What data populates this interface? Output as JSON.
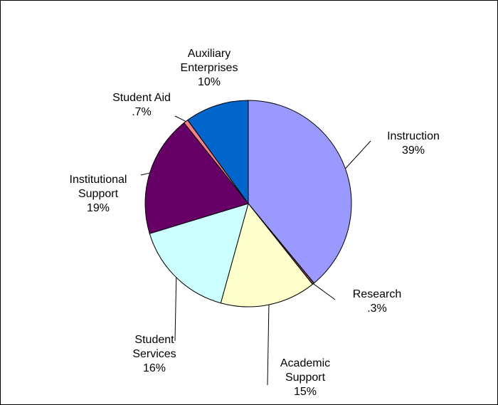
{
  "chart_data": {
    "type": "pie",
    "categories": [
      "Instruction",
      "Research",
      "Academic Support",
      "Student Services",
      "Institutional Support",
      "Student Aid",
      "Auxiliary Enterprises"
    ],
    "values": [
      39,
      0.3,
      15,
      16,
      19,
      0.7,
      10
    ],
    "value_labels": [
      "39%",
      ".3%",
      "15%",
      "16%",
      "19%",
      ".7%",
      "10%"
    ],
    "colors": [
      "#9999ff",
      "#7f3f3f",
      "#ffffcc",
      "#ccffff",
      "#660066",
      "#ff8080",
      "#0066cc"
    ]
  }
}
